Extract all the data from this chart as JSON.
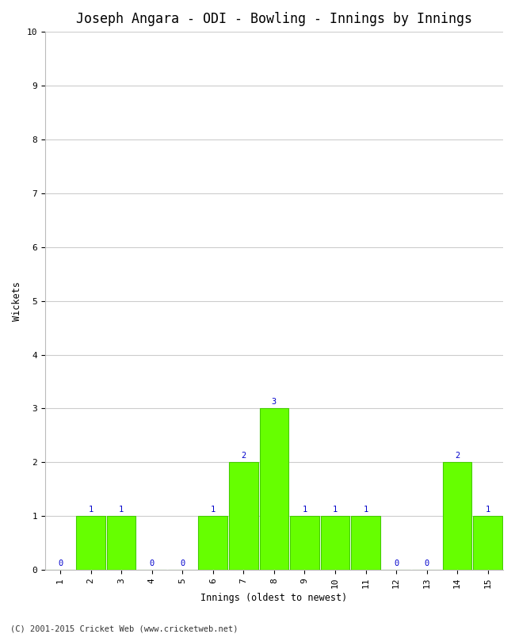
{
  "title": "Joseph Angara - ODI - Bowling - Innings by Innings",
  "xlabel": "Innings (oldest to newest)",
  "ylabel": "Wickets",
  "innings": [
    1,
    2,
    3,
    4,
    5,
    6,
    7,
    8,
    9,
    10,
    11,
    12,
    13,
    14,
    15
  ],
  "wickets": [
    0,
    1,
    1,
    0,
    0,
    1,
    2,
    3,
    1,
    1,
    1,
    0,
    0,
    2,
    1
  ],
  "bar_color": "#66ff00",
  "bar_edge_color": "#44cc00",
  "ylim": [
    0,
    10
  ],
  "yticks": [
    0,
    1,
    2,
    3,
    4,
    5,
    6,
    7,
    8,
    9,
    10
  ],
  "label_color": "#0000cc",
  "label_fontsize": 7.5,
  "title_fontsize": 12,
  "axis_label_fontsize": 8.5,
  "tick_fontsize": 8,
  "background_color": "#ffffff",
  "grid_color": "#cccccc",
  "footer_text": "(C) 2001-2015 Cricket Web (www.cricketweb.net)",
  "footer_fontsize": 7.5
}
